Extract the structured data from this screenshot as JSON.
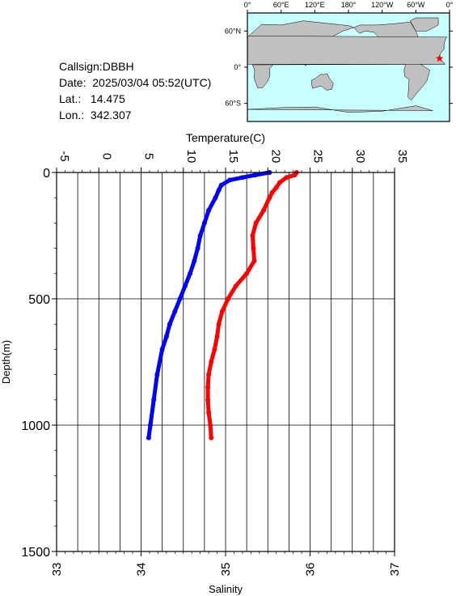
{
  "station": {
    "callsign_label": "Callsign:",
    "callsign": "DBBH",
    "date_label": "Date:",
    "date": "2025/03/04 05:52(UTC)",
    "lat_label": "Lat.:",
    "lat": "14.475",
    "lon_label": "Lon.:",
    "lon": "342.307"
  },
  "map": {
    "top_ticks": [
      "0°",
      "60°E",
      "120°E",
      "180°",
      "120°W",
      "60°W",
      "0°"
    ],
    "left_ticks": [
      "60°N",
      "0°",
      "60°S"
    ],
    "station_marker": {
      "lon": 342.307,
      "lat": 14.475
    },
    "ocean_color": "#c8ffff",
    "land_color": "#c0c0c0",
    "marker_color": "#ff0000"
  },
  "chart_data": {
    "type": "scatter",
    "ylabel": "Depth(m)",
    "ylim": [
      0,
      1500
    ],
    "y_inverted": true,
    "y_ticks": [
      0,
      500,
      1000,
      1500
    ],
    "top_axis": {
      "label": "Temperature(C)",
      "range": [
        -5,
        35
      ],
      "ticks": [
        -5,
        0,
        5,
        10,
        15,
        20,
        25,
        30,
        35
      ]
    },
    "bottom_axis": {
      "label": "Salinity",
      "range": [
        33,
        37
      ],
      "ticks": [
        33,
        34,
        35,
        36,
        37
      ]
    },
    "grid": true,
    "series": [
      {
        "axis": "top",
        "color": "#0000ff",
        "depth": [
          0,
          10,
          20,
          30,
          50,
          70,
          100,
          150,
          200,
          250,
          300,
          350,
          400,
          450,
          500,
          550,
          600,
          650,
          700,
          800,
          900,
          1000,
          1050
        ],
        "value": [
          20.2,
          18.5,
          17.0,
          15.5,
          14.5,
          14.2,
          13.8,
          13.0,
          12.5,
          12.0,
          11.7,
          11.3,
          10.8,
          10.2,
          9.6,
          9.0,
          8.4,
          8.0,
          7.5,
          6.9,
          6.5,
          6.1,
          5.9
        ]
      },
      {
        "axis": "bottom",
        "color": "#ff0000",
        "depth": [
          0,
          10,
          20,
          40,
          60,
          80,
          100,
          150,
          200,
          250,
          300,
          350,
          400,
          450,
          500,
          550,
          600,
          650,
          700,
          750,
          800,
          850,
          900,
          950,
          1000,
          1050
        ],
        "value": [
          35.84,
          35.82,
          35.72,
          35.64,
          35.6,
          35.55,
          35.52,
          35.45,
          35.36,
          35.32,
          35.33,
          35.34,
          35.25,
          35.12,
          35.03,
          34.96,
          34.92,
          34.9,
          34.87,
          34.83,
          34.8,
          34.79,
          34.79,
          34.8,
          34.82,
          34.83
        ]
      }
    ]
  }
}
